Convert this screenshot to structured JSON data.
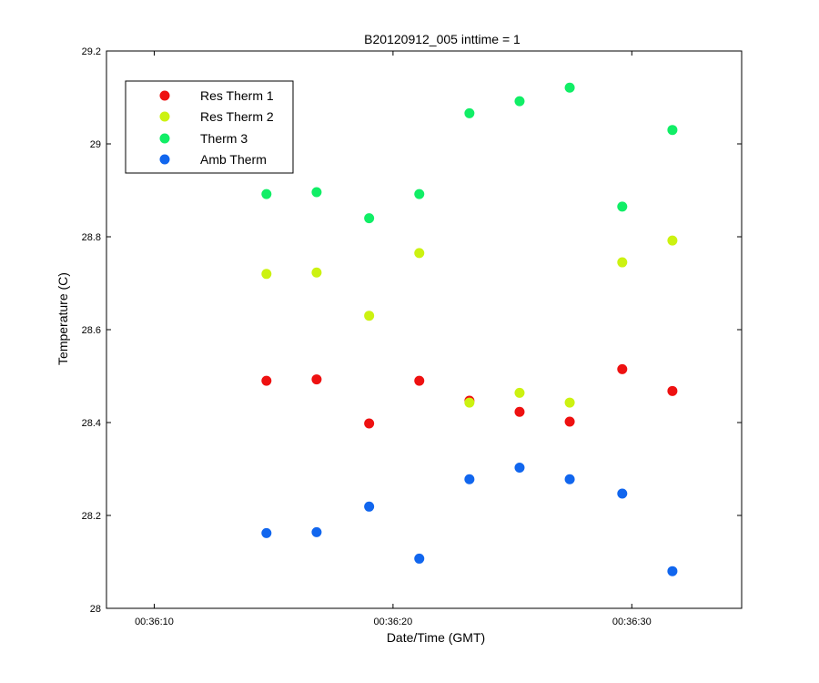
{
  "chart_data": {
    "type": "scatter",
    "title": "B20120912_005 inttime = 1",
    "xlabel": "Date/Time (GMT)",
    "ylabel": "Temperature (C)",
    "xlim": [
      "00:36:08",
      "00:36:34.6"
    ],
    "ylim": [
      28,
      29.2
    ],
    "xticks": [
      "00:36:10",
      "00:36:20",
      "00:36:30"
    ],
    "yticks": [
      "28",
      "28.2",
      "28.4",
      "28.6",
      "28.8",
      "29",
      "29.2"
    ],
    "grid": false,
    "legend_position": "top-left",
    "x": [
      "00:36:14.7",
      "00:36:16.8",
      "00:36:19.0",
      "00:36:21.1",
      "00:36:23.2",
      "00:36:25.3",
      "00:36:27.4",
      "00:36:29.6",
      "00:36:31.7"
    ],
    "series": [
      {
        "name": "Res Therm 1",
        "color": "#ee1111",
        "values": [
          28.49,
          28.493,
          28.398,
          28.49,
          28.447,
          28.423,
          28.402,
          28.515,
          28.468
        ]
      },
      {
        "name": "Res Therm 2",
        "color": "#ccf211",
        "values": [
          28.72,
          28.723,
          28.63,
          28.765,
          28.443,
          28.464,
          28.443,
          28.745,
          28.792
        ]
      },
      {
        "name": "Therm 3",
        "color": "#11ee66",
        "values": [
          28.892,
          28.896,
          28.84,
          28.892,
          29.066,
          29.092,
          29.121,
          28.865,
          29.03
        ]
      },
      {
        "name": "Amb Therm",
        "color": "#1166ee",
        "values": [
          28.162,
          28.164,
          28.219,
          28.107,
          28.278,
          28.303,
          28.278,
          28.247,
          28.08
        ]
      }
    ]
  }
}
